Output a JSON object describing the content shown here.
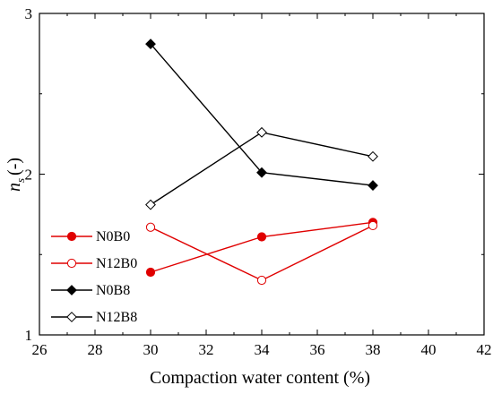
{
  "chart_data": {
    "type": "line",
    "title": "",
    "xlabel": "Compaction water content (%)",
    "ylabel_main": "n",
    "ylabel_sub": "s",
    "ylabel_suffix": "(-)",
    "xlim": [
      26,
      42
    ],
    "ylim": [
      1,
      3
    ],
    "x_ticks": [
      26,
      28,
      30,
      32,
      34,
      36,
      38,
      40,
      42
    ],
    "y_ticks": [
      1,
      2,
      3
    ],
    "grid": false,
    "legend_position": "left",
    "series": [
      {
        "name": "N0B0",
        "x": [
          30,
          34,
          38
        ],
        "y": [
          1.39,
          1.61,
          1.7
        ],
        "color": "#e00000",
        "marker": "circle",
        "fill": true
      },
      {
        "name": "N12B0",
        "x": [
          30,
          34,
          38
        ],
        "y": [
          1.67,
          1.34,
          1.68
        ],
        "color": "#e00000",
        "marker": "circle",
        "fill": false
      },
      {
        "name": "N0B8",
        "x": [
          30,
          34,
          38
        ],
        "y": [
          2.81,
          2.01,
          1.93
        ],
        "color": "#000000",
        "marker": "diamond",
        "fill": true
      },
      {
        "name": "N12B8",
        "x": [
          30,
          34,
          38
        ],
        "y": [
          1.81,
          2.26,
          2.11
        ],
        "color": "#000000",
        "marker": "diamond",
        "fill": false
      }
    ]
  }
}
